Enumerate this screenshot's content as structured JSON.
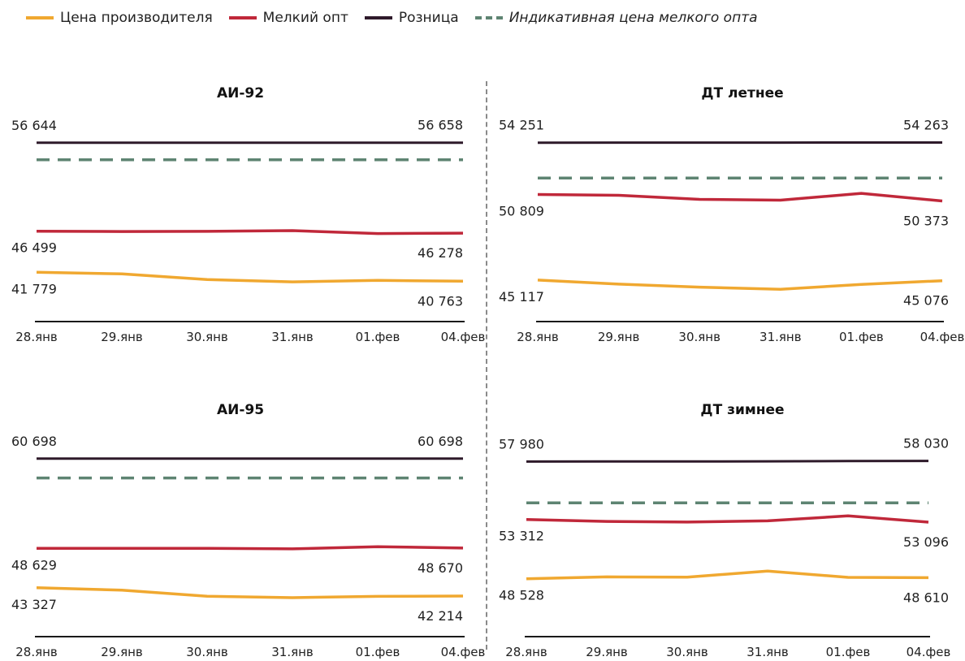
{
  "legend": {
    "producer": "Цена производителя",
    "small_wholesale": "Мелкий опт",
    "retail": "Розница",
    "indicative": "Индикативная цена мелкого опта"
  },
  "colors": {
    "producer": "#F0A830",
    "small_wholesale": "#C0283A",
    "retail": "#2E1A2A",
    "indicative": "#5E8472",
    "axis": "#1a1a1a"
  },
  "chart_data": [
    {
      "type": "line",
      "title": "АИ-92",
      "x": [
        "28.янв",
        "29.янв",
        "30.янв",
        "31.янв",
        "01.фев",
        "04.фев"
      ],
      "ylim": [
        40600,
        57000
      ],
      "series": [
        {
          "key": "retail",
          "name": "Розница",
          "values": [
            56644,
            56646,
            56648,
            56650,
            56654,
            56658
          ],
          "labels": [
            "56 644",
            "56 658"
          ]
        },
        {
          "key": "indicative",
          "name": "Индикативная цена мелкого опта",
          "values": [
            54700,
            54700,
            54700,
            54700,
            54700,
            54700
          ],
          "labels": []
        },
        {
          "key": "small_wholesale",
          "name": "Мелкий опт",
          "values": [
            46499,
            46460,
            46480,
            46560,
            46230,
            46278
          ],
          "labels": [
            "46 499",
            "46 278"
          ]
        },
        {
          "key": "producer",
          "name": "Цена производителя",
          "values": [
            41779,
            41600,
            40950,
            40680,
            40850,
            40763
          ],
          "labels": [
            "41 779",
            "40 763"
          ]
        }
      ]
    },
    {
      "type": "line",
      "title": "ДТ летнее",
      "x": [
        "28.янв",
        "29.янв",
        "30.янв",
        "31.янв",
        "01.фев",
        "04.фев"
      ],
      "ylim": [
        44950,
        54450
      ],
      "series": [
        {
          "key": "retail",
          "name": "Розница",
          "values": [
            54251,
            54254,
            54256,
            54258,
            54260,
            54263
          ],
          "labels": [
            "54 251",
            "54 263"
          ]
        },
        {
          "key": "indicative",
          "name": "Индикативная цена мелкого опта",
          "values": [
            51900,
            51900,
            51900,
            51900,
            51900,
            51900
          ],
          "labels": []
        },
        {
          "key": "small_wholesale",
          "name": "Мелкий опт",
          "values": [
            50809,
            50750,
            50480,
            50430,
            50880,
            50373
          ],
          "labels": [
            "50 809",
            "50 373"
          ]
        },
        {
          "key": "producer",
          "name": "Цена производителя",
          "values": [
            45117,
            44850,
            44650,
            44500,
            44830,
            45076
          ],
          "labels": [
            "45 117",
            "45 076"
          ]
        }
      ]
    },
    {
      "type": "line",
      "title": "АИ-95",
      "x": [
        "28.янв",
        "29.янв",
        "30.янв",
        "31.янв",
        "01.фев",
        "04.фев"
      ],
      "ylim": [
        42000,
        61000
      ],
      "series": [
        {
          "key": "retail",
          "name": "Розница",
          "values": [
            60698,
            60698,
            60698,
            60698,
            60698,
            60698
          ],
          "labels": [
            "60 698",
            "60 698"
          ]
        },
        {
          "key": "indicative",
          "name": "Индикативная цена мелкого опта",
          "values": [
            58100,
            58100,
            58100,
            58100,
            58100,
            58100
          ],
          "labels": []
        },
        {
          "key": "small_wholesale",
          "name": "Мелкий опт",
          "values": [
            48629,
            48629,
            48629,
            48560,
            48860,
            48670
          ],
          "labels": [
            "48 629",
            "48 670"
          ]
        },
        {
          "key": "producer",
          "name": "Цена производителя",
          "values": [
            43327,
            43000,
            42200,
            42000,
            42180,
            42214
          ],
          "labels": [
            "43 327",
            "42 214"
          ]
        }
      ]
    },
    {
      "type": "line",
      "title": "ДТ зимнее",
      "x": [
        "28.янв",
        "29.янв",
        "30.янв",
        "31.янв",
        "01.фев",
        "04.фев"
      ],
      "ylim": [
        47000,
        58400
      ],
      "series": [
        {
          "key": "retail",
          "name": "Розница",
          "values": [
            57980,
            57985,
            57990,
            58000,
            58020,
            58030
          ],
          "labels": [
            "57 980",
            "58 030"
          ]
        },
        {
          "key": "indicative",
          "name": "Индикативная цена мелкого опта",
          "values": [
            54650,
            54650,
            54650,
            54650,
            54650,
            54650
          ],
          "labels": []
        },
        {
          "key": "small_wholesale",
          "name": "Мелкий опт",
          "values": [
            53312,
            53150,
            53100,
            53200,
            53600,
            53096
          ],
          "labels": [
            "53 312",
            "53 096"
          ]
        },
        {
          "key": "producer",
          "name": "Цена производителя",
          "values": [
            48528,
            48680,
            48650,
            49150,
            48640,
            48610
          ],
          "labels": [
            "48 528",
            "48 610"
          ]
        }
      ]
    }
  ]
}
